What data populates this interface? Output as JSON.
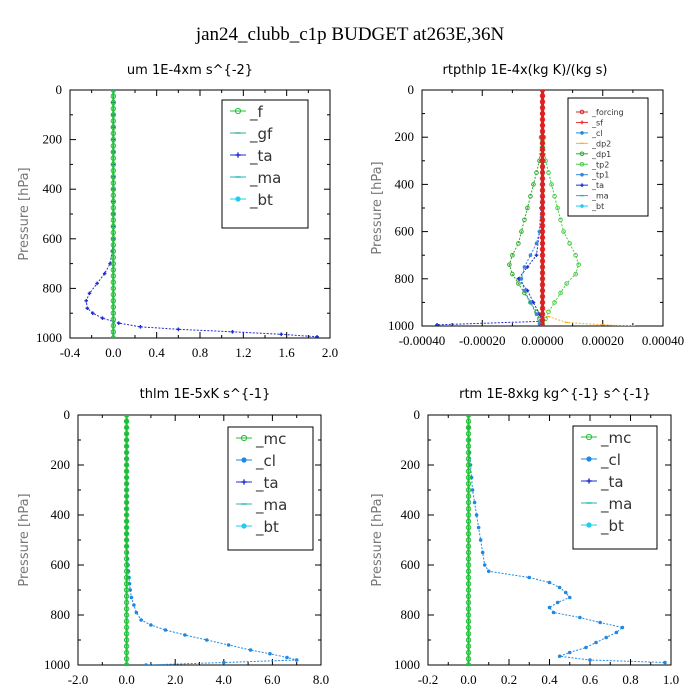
{
  "figure": {
    "title": "jan24_clubb_c1p  BUDGET at263E,36N"
  },
  "colors": {
    "_f": "#22c03a",
    "_gf": "#3aa8a0",
    "_ta": "#1f2fd0",
    "_ma": "#20b4b4",
    "_bt": "#22ccee",
    "_mc": "#22c03a",
    "_cl": "#1e88e5",
    "_forcing": "#dd2020",
    "_sf": "#ee3333",
    "_dp2": "#ffb020",
    "_dp1": "#2faa2f",
    "_tp2": "#44cc44",
    "_tp1": "#3388dd"
  },
  "chart_data": [
    {
      "type": "line",
      "title": "um   1E-4xm s^{-2}",
      "ylabel": "Pressure [hPa]",
      "xlim": [
        -0.4,
        2.0
      ],
      "ylim": [
        1000,
        0
      ],
      "xticks": [
        "-0.4",
        "0.0",
        "0.4",
        "0.8",
        "1.2",
        "1.6",
        "2.0"
      ],
      "yticks": [
        "0",
        "200",
        "400",
        "600",
        "800",
        "1000"
      ],
      "legend": {
        "position": "top-right",
        "entries": [
          "_f",
          "_gf",
          "_ta",
          "_ma",
          "_bt"
        ]
      },
      "series": [
        {
          "name": "_ta",
          "y": [
            0,
            50,
            100,
            150,
            200,
            250,
            300,
            350,
            400,
            450,
            500,
            550,
            600,
            650,
            700,
            740,
            780,
            820,
            850,
            880,
            900,
            920,
            940,
            955,
            965,
            975,
            985,
            995
          ],
          "x": [
            0,
            0,
            0,
            0,
            0,
            0,
            0,
            0,
            0,
            0,
            0,
            0,
            0,
            -0.01,
            -0.03,
            -0.08,
            -0.15,
            -0.22,
            -0.25,
            -0.24,
            -0.19,
            -0.1,
            0.05,
            0.25,
            0.6,
            1.1,
            1.55,
            1.88
          ]
        },
        {
          "name": "_f",
          "y": [
            0,
            25,
            50,
            75,
            100,
            125,
            150,
            175,
            200,
            225,
            250,
            275,
            300,
            325,
            350,
            375,
            400,
            425,
            450,
            475,
            500,
            525,
            550,
            575,
            600,
            625,
            650,
            675,
            700,
            725,
            750,
            775,
            800,
            825,
            850,
            875,
            900,
            925,
            950,
            975,
            1000
          ],
          "x": [
            0,
            0,
            0,
            0,
            0,
            0,
            0,
            0,
            0,
            0,
            0,
            0,
            0,
            0,
            0,
            0,
            0,
            0,
            0,
            0,
            0,
            0,
            0,
            0,
            0,
            0,
            0,
            0,
            0,
            0,
            0,
            0,
            0,
            0,
            0,
            0,
            0,
            0,
            0,
            0,
            0
          ]
        }
      ]
    },
    {
      "type": "line",
      "title": "rtpthlp   1E-4x(kg K)/(kg s)",
      "ylabel": "Pressure [hPa]",
      "xlim": [
        -0.0004,
        0.0004
      ],
      "ylim": [
        1000,
        0
      ],
      "xticks": [
        "-0.00040",
        "-0.00020",
        "0.00000",
        "0.00020",
        "0.00040"
      ],
      "yticks": [
        "0",
        "200",
        "400",
        "600",
        "800",
        "1000"
      ],
      "legend": {
        "position": "top-right",
        "entries": [
          "_forcing",
          "_sf",
          "_cl",
          "_dp2",
          "_dp1",
          "_tp2",
          "_tp1",
          "_ta",
          "_ma",
          "_bt"
        ]
      },
      "series": [
        {
          "name": "_tp2",
          "y": [
            0,
            100,
            200,
            300,
            350,
            400,
            450,
            500,
            550,
            600,
            650,
            700,
            740,
            780,
            820,
            860,
            900,
            940,
            970,
            990,
            1000
          ],
          "x": [
            0,
            0,
            5e-06,
            1e-05,
            2e-05,
            3e-05,
            4e-05,
            5e-05,
            6e-05,
            7e-05,
            9e-05,
            0.00011,
            0.00012,
            0.00011,
            8e-05,
            6e-05,
            4e-05,
            2e-05,
            1e-05,
            0,
            0
          ]
        },
        {
          "name": "_dp1",
          "y": [
            0,
            100,
            200,
            300,
            350,
            400,
            450,
            500,
            550,
            600,
            650,
            700,
            740,
            780,
            820,
            860,
            900,
            940,
            970,
            990,
            1000
          ],
          "x": [
            0,
            0,
            -5e-06,
            -1e-05,
            -2e-05,
            -3e-05,
            -4e-05,
            -5e-05,
            -6e-05,
            -7e-05,
            -8e-05,
            -0.0001,
            -0.00011,
            -0.0001,
            -8e-05,
            -6e-05,
            -4e-05,
            -2e-05,
            -1e-05,
            0,
            0
          ]
        },
        {
          "name": "_ta",
          "y": [
            0,
            200,
            400,
            500,
            600,
            700,
            750,
            800,
            850,
            900,
            950,
            980,
            995
          ],
          "x": [
            0,
            0,
            0,
            -5e-06,
            -1e-05,
            -2e-05,
            -5e-05,
            -8e-05,
            -5e-05,
            -3e-05,
            -1e-05,
            0,
            -0.00035
          ]
        },
        {
          "name": "_tp1",
          "y": [
            0,
            300,
            500,
            600,
            650,
            700,
            750,
            800,
            850,
            900,
            950,
            990,
            1000
          ],
          "x": [
            0,
            0,
            -5e-06,
            -1e-05,
            -2e-05,
            -4e-05,
            -6e-05,
            -7e-05,
            -6e-05,
            -4e-05,
            -2e-05,
            -1e-05,
            0
          ]
        },
        {
          "name": "_dp2",
          "y": [
            0,
            900,
            960,
            985,
            995,
            1000
          ],
          "x": [
            0,
            0,
            2e-05,
            8e-05,
            0.0002,
            0.0003
          ]
        },
        {
          "name": "_forcing",
          "y": [
            0,
            25,
            50,
            75,
            100,
            125,
            150,
            175,
            200,
            225,
            250,
            275,
            300,
            325,
            350,
            375,
            400,
            425,
            450,
            475,
            500,
            525,
            550,
            575,
            600,
            625,
            650,
            675,
            700,
            725,
            750,
            775,
            800,
            825,
            850,
            875,
            900,
            925,
            950,
            975,
            1000
          ],
          "x": [
            0,
            0,
            0,
            0,
            0,
            0,
            0,
            0,
            0,
            0,
            0,
            0,
            0,
            0,
            0,
            0,
            0,
            0,
            0,
            0,
            0,
            0,
            0,
            0,
            0,
            0,
            0,
            0,
            0,
            0,
            0,
            0,
            0,
            0,
            0,
            0,
            0,
            0,
            0,
            0,
            0
          ]
        }
      ]
    },
    {
      "type": "line",
      "title": "thlm   1E-5xK s^{-1}",
      "ylabel": "Pressure [hPa]",
      "xlim": [
        -2.0,
        8.0
      ],
      "ylim": [
        1000,
        0
      ],
      "xticks": [
        "-2.0",
        "0.0",
        "2.0",
        "4.0",
        "6.0",
        "8.0"
      ],
      "yticks": [
        "0",
        "200",
        "400",
        "600",
        "800",
        "1000"
      ],
      "legend": {
        "position": "top-right",
        "entries": [
          "_mc",
          "_cl",
          "_ta",
          "_ma",
          "_bt"
        ]
      },
      "series": [
        {
          "name": "_cl",
          "y": [
            0,
            25,
            50,
            75,
            100,
            125,
            150,
            175,
            200,
            225,
            250,
            275,
            300,
            325,
            350,
            375,
            400,
            425,
            450,
            475,
            500,
            525,
            550,
            575,
            600,
            625,
            650,
            675,
            700,
            730,
            760,
            790,
            820,
            840,
            860,
            880,
            900,
            920,
            940,
            955,
            970,
            980,
            990,
            1000
          ],
          "x": [
            0,
            0,
            0,
            0,
            0,
            0,
            0,
            0,
            0,
            0,
            0,
            0,
            0,
            0,
            0,
            0,
            0,
            0,
            0,
            0,
            0,
            0,
            0.02,
            0.04,
            0.06,
            0.08,
            0.1,
            0.12,
            0.15,
            0.2,
            0.3,
            0.4,
            0.6,
            1.0,
            1.6,
            2.4,
            3.3,
            4.2,
            5.1,
            5.9,
            6.6,
            7.0,
            4.0,
            0.8
          ]
        },
        {
          "name": "_mc",
          "y": [
            0,
            25,
            50,
            75,
            100,
            125,
            150,
            175,
            200,
            225,
            250,
            275,
            300,
            325,
            350,
            375,
            400,
            425,
            450,
            475,
            500,
            525,
            550,
            575,
            600,
            625,
            650,
            675,
            700,
            725,
            750,
            775,
            800,
            825,
            850,
            875,
            900,
            925,
            950,
            975,
            1000
          ],
          "x": [
            0,
            0,
            0,
            0,
            0,
            0,
            0,
            0,
            0,
            0,
            0,
            0,
            0,
            0,
            0,
            0,
            0,
            0,
            0,
            0,
            0,
            0,
            0,
            0,
            0,
            0,
            0,
            0,
            0,
            0,
            0,
            0,
            0,
            0,
            0,
            0,
            0,
            0,
            0,
            0,
            0
          ]
        }
      ]
    },
    {
      "type": "line",
      "title": "rtm   1E-8xkg kg^{-1} s^{-1}",
      "ylabel": "Pressure [hPa]",
      "xlim": [
        -0.2,
        1.0
      ],
      "ylim": [
        1000,
        0
      ],
      "xticks": [
        "-0.2",
        "0.0",
        "0.2",
        "0.4",
        "0.6",
        "0.8",
        "1.0"
      ],
      "yticks": [
        "0",
        "200",
        "400",
        "600",
        "800",
        "1000"
      ],
      "legend": {
        "position": "top-right",
        "entries": [
          "_mc",
          "_cl",
          "_ta",
          "_ma",
          "_bt"
        ]
      },
      "series": [
        {
          "name": "_cl",
          "y": [
            0,
            50,
            100,
            150,
            200,
            250,
            300,
            350,
            400,
            450,
            500,
            550,
            600,
            625,
            650,
            670,
            690,
            710,
            730,
            750,
            770,
            790,
            810,
            830,
            850,
            870,
            890,
            910,
            930,
            950,
            965,
            980,
            990
          ],
          "x": [
            0,
            0,
            0.002,
            0.005,
            0.01,
            0.015,
            0.02,
            0.03,
            0.04,
            0.05,
            0.06,
            0.07,
            0.08,
            0.1,
            0.3,
            0.4,
            0.45,
            0.48,
            0.5,
            0.44,
            0.4,
            0.42,
            0.55,
            0.65,
            0.76,
            0.73,
            0.68,
            0.63,
            0.58,
            0.5,
            0.45,
            0.6,
            0.97
          ]
        },
        {
          "name": "_mc",
          "y": [
            0,
            25,
            50,
            75,
            100,
            125,
            150,
            175,
            200,
            225,
            250,
            275,
            300,
            325,
            350,
            375,
            400,
            425,
            450,
            475,
            500,
            525,
            550,
            575,
            600,
            625,
            650,
            675,
            700,
            725,
            750,
            775,
            800,
            825,
            850,
            875,
            900,
            925,
            950,
            975,
            1000
          ],
          "x": [
            0,
            0,
            0,
            0,
            0,
            0,
            0,
            0,
            0,
            0,
            0,
            0,
            0,
            0,
            0,
            0,
            0,
            0,
            0,
            0,
            0,
            0,
            0,
            0,
            0,
            0,
            0,
            0,
            0,
            0,
            0,
            0,
            0,
            0,
            0,
            0,
            0,
            0,
            0,
            0,
            0
          ]
        }
      ]
    }
  ]
}
